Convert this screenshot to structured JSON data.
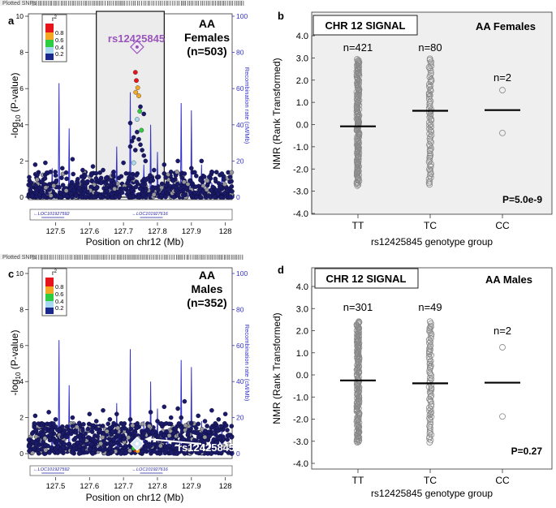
{
  "colors": {
    "recomb": "#3333cc",
    "snp": "#1a1a66",
    "snp_edge": "#0d0d40",
    "lead": "#9955bb",
    "grey_pt": "#999999",
    "r2_08": "#e8141c",
    "r2_06": "#f5a623",
    "r2_04": "#2ecc40",
    "r2_02": "#a8d8f0",
    "r2_00": "#1a2a8c",
    "strip_bg": "#f0f0f0",
    "strip_fg": "#444444"
  },
  "chart_data": [
    {
      "id": "a",
      "type": "scatter",
      "panel_letter": "a",
      "title_lines": [
        "AA",
        "Females",
        "(n=503)"
      ],
      "lead_snp": "rs12425845",
      "track_label": "Plotted SNPs",
      "xlabel": "Position on chr12 (Mb)",
      "ylabel_main": "-log",
      "ylabel_sub": "10",
      "ylabel_rest": " (P-value)",
      "y2label": "Recombination rate (cM/Mb)",
      "xlim": [
        127.42,
        128.02
      ],
      "ylim": [
        0,
        10
      ],
      "y2lim": [
        0,
        100
      ],
      "xticks": [
        127.5,
        127.6,
        127.7,
        127.8,
        127.9,
        128
      ],
      "xtick_labels": [
        "127.5",
        "127.6",
        "127.7",
        "127.8",
        "127.9",
        "128"
      ],
      "yticks": [
        0,
        2,
        4,
        6,
        8,
        10
      ],
      "ytick_labels": [
        "0",
        "2",
        "4",
        "6",
        "8",
        "10"
      ],
      "y2ticks": [
        0,
        20,
        40,
        60,
        80,
        100
      ],
      "y2tick_labels": [
        "0",
        "20",
        "40",
        "60",
        "80",
        "100"
      ],
      "legend_title": "r",
      "legend_sup": "2",
      "legend_labels": [
        "0.8",
        "0.6",
        "0.4",
        "0.2"
      ],
      "highlight_region": [
        127.62,
        127.82
      ],
      "gene_labels": [
        "LOC101927592",
        "LOC101927616"
      ],
      "gene_positions": [
        127.43,
        127.72
      ],
      "recomb_peaks": [
        [
          127.46,
          6
        ],
        [
          127.49,
          16
        ],
        [
          127.51,
          63
        ],
        [
          127.54,
          38
        ],
        [
          127.56,
          8
        ],
        [
          127.6,
          5
        ],
        [
          127.66,
          12
        ],
        [
          127.68,
          28
        ],
        [
          127.72,
          58
        ],
        [
          127.76,
          18
        ],
        [
          127.78,
          40
        ],
        [
          127.8,
          25
        ],
        [
          127.83,
          12
        ],
        [
          127.87,
          52
        ],
        [
          127.9,
          48
        ],
        [
          127.93,
          18
        ],
        [
          127.96,
          8
        ],
        [
          127.99,
          14
        ]
      ],
      "lead_point": [
        127.74,
        8.3
      ],
      "colored_points": [
        {
          "x": 127.735,
          "y": 6.9,
          "c": "r2_08"
        },
        {
          "x": 127.738,
          "y": 6.45,
          "c": "r2_08"
        },
        {
          "x": 127.742,
          "y": 6.05,
          "c": "r2_06"
        },
        {
          "x": 127.736,
          "y": 5.8,
          "c": "r2_06"
        },
        {
          "x": 127.745,
          "y": 5.6,
          "c": "r2_06"
        },
        {
          "x": 127.748,
          "y": 4.75,
          "c": "r2_04"
        },
        {
          "x": 127.753,
          "y": 3.7,
          "c": "r2_04"
        },
        {
          "x": 127.74,
          "y": 4.3,
          "c": "r2_02"
        },
        {
          "x": 127.73,
          "y": 1.9,
          "c": "r2_02"
        }
      ],
      "band_seed": 11
    },
    {
      "id": "b",
      "type": "strip",
      "panel_letter": "b",
      "box_title": "CHR 12 SIGNAL",
      "group_title": "AA Females",
      "shaded": true,
      "ylabel": "NMR (Rank Transformed)",
      "xlabel": "rs12425845 genotype group",
      "ylim": [
        -4.0,
        4.0
      ],
      "yticks": [
        4.0,
        3.0,
        2.0,
        1.0,
        0.0,
        -1.0,
        -2.0,
        -3.0,
        -4.0
      ],
      "ytick_labels": [
        "4.0",
        "3.0",
        "2.0",
        "1.0",
        "0.0",
        "-1.0",
        "-2.0",
        "-3.0",
        "-4.0"
      ],
      "categories": [
        "TT",
        "TC",
        "CC"
      ],
      "counts": [
        "n=421",
        "n=80",
        "n=2"
      ],
      "means": [
        -0.08,
        0.62,
        0.65
      ],
      "ranges": [
        [
          -2.75,
          2.95
        ],
        [
          -2.7,
          3.0
        ],
        [
          -0.35,
          1.6
        ]
      ],
      "cc_points": [
        1.55,
        -0.38
      ],
      "pvalue": "P=5.0e-9"
    },
    {
      "id": "c",
      "type": "scatter",
      "panel_letter": "c",
      "title_lines": [
        "AA",
        "Males",
        "(n=352)"
      ],
      "lead_snp": "rs12425845",
      "track_label": "Plotted SNPs",
      "xlabel": "Position on chr12 (Mb)",
      "ylabel_main": "-log",
      "ylabel_sub": "10",
      "ylabel_rest": " (P-value)",
      "y2label": "Recombination rate (cM/Mb)",
      "xlim": [
        127.42,
        128.02
      ],
      "ylim": [
        0,
        10
      ],
      "y2lim": [
        0,
        100
      ],
      "xticks": [
        127.5,
        127.6,
        127.7,
        127.8,
        127.9,
        128
      ],
      "xtick_labels": [
        "127.5",
        "127.6",
        "127.7",
        "127.8",
        "127.9",
        "128"
      ],
      "yticks": [
        0,
        2,
        4,
        6,
        8,
        10
      ],
      "ytick_labels": [
        "0",
        "2",
        "4",
        "6",
        "8",
        "10"
      ],
      "y2ticks": [
        0,
        20,
        40,
        60,
        80,
        100
      ],
      "y2tick_labels": [
        "0",
        "20",
        "40",
        "60",
        "80",
        "100"
      ],
      "legend_title": "r",
      "legend_sup": "2",
      "legend_labels": [
        "0.8",
        "0.6",
        "0.4",
        "0.2"
      ],
      "highlight_region": null,
      "gene_labels": [
        "LOC101927592",
        "LOC101927616"
      ],
      "gene_positions": [
        127.43,
        127.72
      ],
      "recomb_peaks": [
        [
          127.46,
          6
        ],
        [
          127.49,
          16
        ],
        [
          127.51,
          63
        ],
        [
          127.54,
          38
        ],
        [
          127.56,
          8
        ],
        [
          127.6,
          5
        ],
        [
          127.66,
          12
        ],
        [
          127.68,
          28
        ],
        [
          127.72,
          58
        ],
        [
          127.76,
          18
        ],
        [
          127.78,
          40
        ],
        [
          127.8,
          25
        ],
        [
          127.83,
          12
        ],
        [
          127.87,
          52
        ],
        [
          127.9,
          48
        ],
        [
          127.93,
          18
        ],
        [
          127.96,
          8
        ],
        [
          127.99,
          14
        ]
      ],
      "lead_point": [
        127.74,
        0.55
      ],
      "colored_points": [
        {
          "x": 127.735,
          "y": 0.2,
          "c": "r2_08"
        },
        {
          "x": 127.742,
          "y": 0.15,
          "c": "r2_06"
        },
        {
          "x": 127.73,
          "y": 0.3,
          "c": "r2_04"
        }
      ],
      "band_seed": 23
    },
    {
      "id": "d",
      "type": "strip",
      "panel_letter": "d",
      "box_title": "CHR 12 SIGNAL",
      "group_title": "AA Males",
      "shaded": false,
      "ylabel": "NMR (Rank Transformed)",
      "xlabel": "rs12425845 genotype group",
      "ylim": [
        -4.0,
        4.0
      ],
      "yticks": [
        4.0,
        3.0,
        2.0,
        1.0,
        0.0,
        -1.0,
        -2.0,
        -3.0,
        -4.0
      ],
      "ytick_labels": [
        "4.0",
        "3.0",
        "2.0",
        "1.0",
        "0.0",
        "-1.0",
        "-2.0",
        "-3.0",
        "-4.0"
      ],
      "categories": [
        "TT",
        "TC",
        "CC"
      ],
      "counts": [
        "n=301",
        "n=49",
        "n=2"
      ],
      "means": [
        -0.25,
        -0.38,
        -0.35
      ],
      "ranges": [
        [
          -3.05,
          2.45
        ],
        [
          -3.05,
          2.45
        ],
        [
          -1.9,
          1.25
        ]
      ],
      "cc_points": [
        1.25,
        -1.88
      ],
      "pvalue": "P=0.27"
    }
  ]
}
